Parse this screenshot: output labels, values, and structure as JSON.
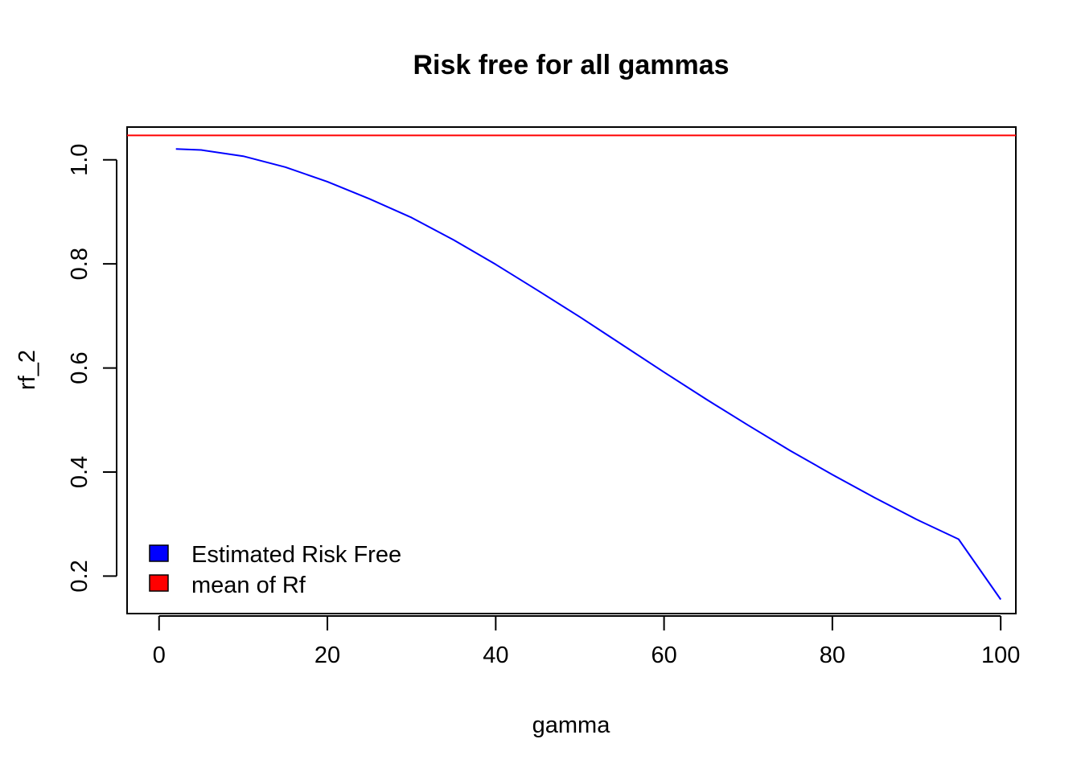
{
  "chart_data": {
    "type": "line",
    "title": "Risk free for all gammas",
    "xlabel": "gamma",
    "ylabel": "rf_2",
    "xlim": [
      -3.8,
      101.8
    ],
    "ylim": [
      0.128,
      1.063
    ],
    "x_ticks": [
      0,
      20,
      40,
      60,
      80,
      100
    ],
    "x_tick_labels": [
      "0",
      "20",
      "40",
      "60",
      "80",
      "100"
    ],
    "y_ticks": [
      0.2,
      0.4,
      0.6,
      0.8,
      1.0
    ],
    "y_tick_labels": [
      "0.2",
      "0.4",
      "0.6",
      "0.8",
      "1.0"
    ],
    "grid": false,
    "legend_position": "bottom-left",
    "series": [
      {
        "name": "Estimated Risk Free",
        "color": "#0000ff",
        "x": [
          2,
          5,
          10,
          15,
          20,
          25,
          30,
          35,
          40,
          45,
          50,
          55,
          60,
          65,
          70,
          75,
          80,
          85,
          90,
          95,
          100
        ],
        "values": [
          1.021,
          1.019,
          1.007,
          0.986,
          0.958,
          0.925,
          0.889,
          0.846,
          0.799,
          0.749,
          0.698,
          0.645,
          0.592,
          0.54,
          0.49,
          0.441,
          0.395,
          0.351,
          0.309,
          0.271,
          0.155
        ]
      },
      {
        "name": "mean of Rf",
        "color": "#ff0000",
        "type": "hline",
        "values": [
          1.047
        ]
      }
    ]
  }
}
